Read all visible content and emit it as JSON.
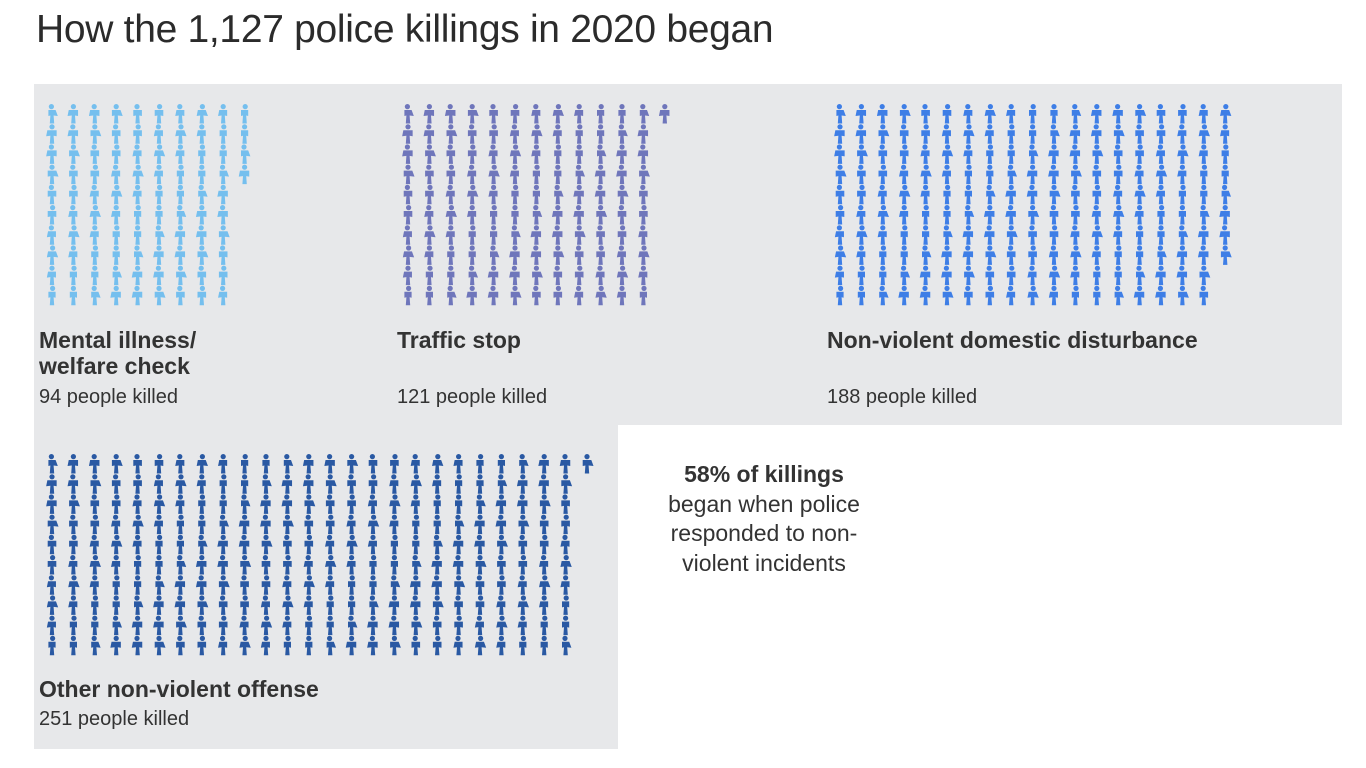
{
  "title": "How the 1,127 police killings in 2020 began",
  "chart_data": {
    "type": "pictogram",
    "unit": "person",
    "categories": [
      {
        "label": "Mental illness/\nwelfare check",
        "value": 94,
        "count_text": "94 people killed",
        "color": "#75bfee"
      },
      {
        "label": "Traffic stop",
        "value": 121,
        "count_text": "121 people killed",
        "color": "#6f76bb"
      },
      {
        "label": "Non-violent domestic disturbance",
        "value": 188,
        "count_text": "188 people killed",
        "color": "#3e7ee6"
      },
      {
        "label": "Other non-violent offense",
        "value": 251,
        "count_text": "251 people killed",
        "color": "#2a59a3"
      }
    ],
    "annotation": {
      "bold": "58% of killings",
      "text": "began when police responded to non-violent incidents"
    }
  }
}
